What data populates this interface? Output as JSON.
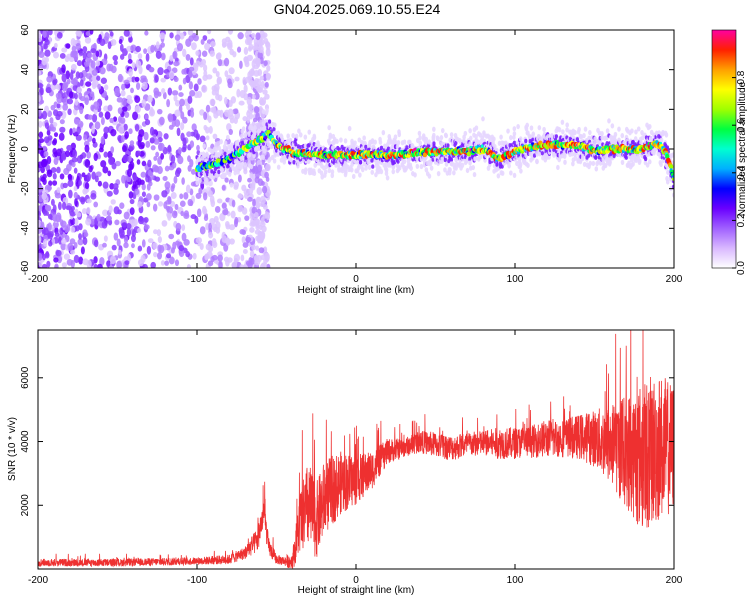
{
  "title": "GN04.2025.069.10.55.E24",
  "chart_data": [
    {
      "type": "heatmap",
      "xlabel": "Height of straight line (km)",
      "ylabel": "Frequency (Hz)",
      "xlim": [
        -200,
        200
      ],
      "ylim": [
        -60,
        60
      ],
      "x_ticks": [
        -200,
        -100,
        0,
        100,
        200
      ],
      "y_ticks": [
        -60,
        -40,
        -20,
        0,
        20,
        40,
        60
      ],
      "colorbar": {
        "label": "Normalized spectral amplitude",
        "range": [
          0,
          1
        ],
        "ticks": [
          0.0,
          0.2,
          0.4,
          0.6,
          0.8
        ],
        "tick_labels": [
          "0.0",
          "0.2",
          "0.4",
          "0.6",
          "0.8"
        ],
        "colors": [
          "#ffffff",
          "#d9b8ff",
          "#a060ff",
          "#6a00ff",
          "#0000ff",
          "#00b0ff",
          "#00ffd0",
          "#00ff40",
          "#a0ff00",
          "#ffff00",
          "#ffa000",
          "#ff2000",
          "#ff00a0"
        ]
      },
      "ridge": {
        "x": [
          -100,
          -90,
          -80,
          -70,
          -60,
          -55,
          -50,
          -40,
          -20,
          0,
          20,
          40,
          60,
          70,
          80,
          90,
          100,
          110,
          120,
          140,
          150,
          160,
          180,
          190,
          195,
          200
        ],
        "y": [
          -10,
          -8,
          -5,
          0,
          5,
          8,
          2,
          -2,
          -3,
          -3,
          -3,
          -2,
          -1,
          -1,
          0,
          -5,
          -1,
          1,
          2,
          2,
          -1,
          0,
          0,
          3,
          -2,
          -15
        ]
      },
      "noise_region_x": [
        -200,
        -55
      ]
    },
    {
      "type": "line",
      "xlabel": "Height of straight line (km)",
      "ylabel": "SNR (10 * v/v)",
      "xlim": [
        -200,
        200
      ],
      "ylim": [
        0,
        7500
      ],
      "x_ticks": [
        -200,
        -100,
        0,
        100,
        200
      ],
      "y_ticks": [
        2000,
        4000,
        6000
      ],
      "color": "#ee3030",
      "series": [
        {
          "x": [
            -200,
            -150,
            -100,
            -80,
            -70,
            -62,
            -58,
            -55,
            -50,
            -45,
            -40,
            -35,
            -30,
            -25,
            -20,
            -10,
            0,
            10,
            20,
            30,
            40,
            50,
            60,
            70,
            80,
            90,
            100,
            110,
            120,
            130,
            140,
            150,
            160,
            170,
            180,
            190,
            200
          ],
          "values": [
            200,
            200,
            250,
            300,
            500,
            900,
            1800,
            700,
            300,
            250,
            250,
            1500,
            2000,
            1500,
            2200,
            2700,
            2800,
            3100,
            3700,
            3800,
            4000,
            3900,
            3800,
            3900,
            3950,
            3950,
            3950,
            4000,
            4100,
            4100,
            4150,
            4100,
            3900,
            3700,
            3500,
            3800,
            3800
          ],
          "amplitude": [
            120,
            120,
            120,
            150,
            200,
            400,
            500,
            300,
            150,
            150,
            300,
            1000,
            1400,
            1200,
            1200,
            1000,
            800,
            600,
            400,
            300,
            350,
            400,
            400,
            400,
            400,
            500,
            500,
            500,
            600,
            600,
            700,
            900,
            1300,
            1800,
            2400,
            2400,
            2000
          ]
        }
      ]
    }
  ]
}
